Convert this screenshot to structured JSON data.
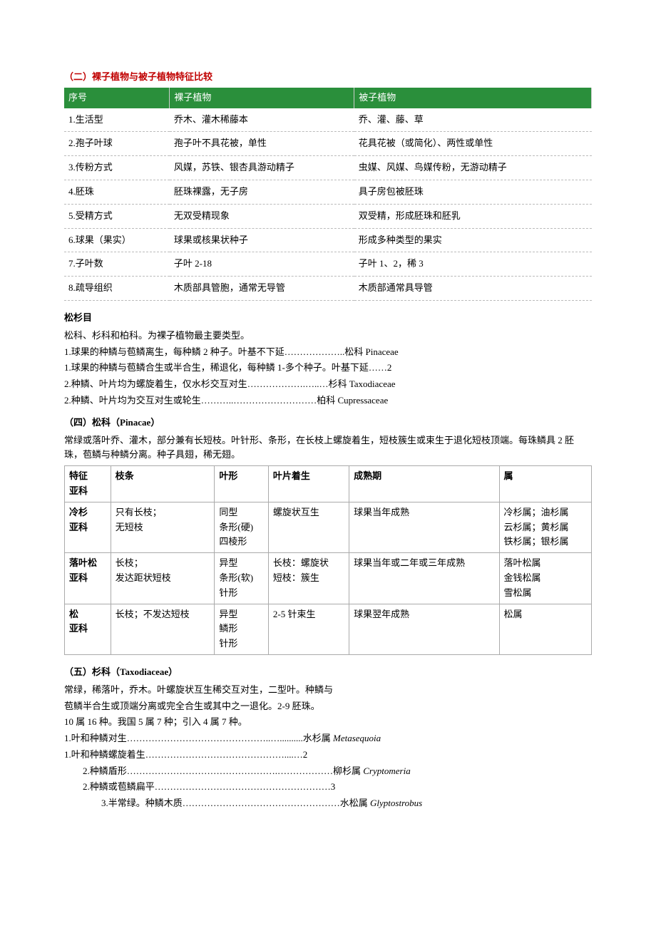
{
  "colors": {
    "title_red": "#c00000",
    "header_bg": "#2a8f3b",
    "header_fg": "#ffffff",
    "border_dashed": "#bbbbbb",
    "border_solid": "#aaaaaa",
    "text": "#000000",
    "background": "#ffffff"
  },
  "section2": {
    "title": "（二）裸子植物与被子植物特征比较",
    "table": {
      "headers": {
        "seq": "序号",
        "gym": "裸子植物",
        "ang": "被子植物"
      },
      "rows": [
        {
          "seq": "1.生活型",
          "gym": "乔木、灌木稀藤本",
          "ang": "乔、灌、藤、草"
        },
        {
          "seq": "2.孢子叶球",
          "gym": "孢子叶不具花被，单性",
          "ang": "花具花被（或简化）、两性或单性"
        },
        {
          "seq": "3.传粉方式",
          "gym": "风媒，苏铁、银杏具游动精子",
          "ang": "虫媒、风媒、鸟媒传粉，无游动精子"
        },
        {
          "seq": "4.胚珠",
          "gym": "胚珠裸露，无子房",
          "ang": "具子房包被胚珠"
        },
        {
          "seq": "5.受精方式",
          "gym": "无双受精现象",
          "ang": "双受精，形成胚珠和胚乳"
        },
        {
          "seq": "6.球果（果实）",
          "gym": "球果或核果状种子",
          "ang": "形成多种类型的果实"
        },
        {
          "seq": "7.子叶数",
          "gym": "子叶 2-18",
          "ang": "子叶 1、2，稀 3"
        },
        {
          "seq": "8.疏导组织",
          "gym": "木质部具管胞，通常无导管",
          "ang": "木质部通常具导管"
        }
      ]
    }
  },
  "order": {
    "title": "松杉目",
    "lines": [
      "松科、杉科和柏科。为裸子植物最主要类型。",
      "1.球果的种鳞与苞鳞离生，每种鳞 2 种子。叶基不下延………………..松科 Pinaceae",
      "1.球果的种鳞与苞鳞合生或半合生，稀退化，每种鳞 1-多个种子。叶基下延……2",
      " 2.种鳞、叶片均为螺旋着生，仅水杉交互对生……………….…..…杉科 Taxodiaceae",
      " 2.种鳞、叶片均为交互对生或轮生………..………………………柏科 Cupressaceae"
    ]
  },
  "section4": {
    "title": "（四）松科（Pinacae）",
    "desc": "常绿或落叶乔、灌木，部分兼有长短枝。叶针形、条形，在长枝上螺旋着生，短枝簇生或束生于退化短枝顶端。每珠鳞具 2 胚珠，苞鳞与种鳞分离。种子具翅，稀无翅。",
    "table": {
      "cols": [
        "特征\n亚科",
        "枝条",
        "叶形",
        "叶片着生",
        "成熟期",
        "属"
      ],
      "h1": "特征",
      "h1b": "亚科",
      "h2": "枝条",
      "h3": "叶形",
      "h4": "叶片着生",
      "h5": "成熟期",
      "h6": "属",
      "r1": {
        "c1a": "冷杉",
        "c1b": "亚科",
        "c2": "只有长枝；\n无短枝",
        "c3": "同型\n条形(硬)\n四棱形",
        "c4": "螺旋状互生",
        "c5": "球果当年成熟",
        "c6": "冷杉属；油杉属\n云杉属；黄杉属\n铁杉属；银杉属"
      },
      "r2": {
        "c1a": "落叶松",
        "c1b": "亚科",
        "c2": "长枝；\n发达距状短枝",
        "c3": "异型\n条形(软)\n针形",
        "c4": "长枝：螺旋状\n短枝：簇生",
        "c5": "球果当年或二年或三年成熟",
        "c6": "落叶松属\n金钱松属\n雪松属"
      },
      "r3": {
        "c1a": "松",
        "c1b": "亚科",
        "c2": "长枝；不发达短枝",
        "c3": "异型\n鳞形\n针形",
        "c4": "2-5 针束生",
        "c5": "球果翌年成熟",
        "c6": "松属"
      }
    }
  },
  "section5": {
    "title": "（五）杉科（Taxodiaceae）",
    "lines": [
      "常绿，稀落叶，乔木。叶螺旋状互生稀交互对生，二型叶。种鳞与",
      "苞鳞半合生或顶端分离或完全合生或其中之一退化。2-9 胚珠。",
      "10 属 16 种。我国 5 属 7 种；引入 4 属 7 种。"
    ],
    "key": {
      "l1": "1.叶和种鳞对生………………………………………..…..........水杉属 ",
      "l1i": "Metasequoia",
      "l2": "1.叶和种鳞螺旋着生………………………………………....…2",
      "l3": "2.种鳞盾形………………………………………….………………柳杉属 ",
      "l3i": "Cryptomeria",
      "l4": "2.种鳞或苞鳞扁平…………………………………………………3",
      "l5": "3.半常绿。种鳞木质……………………………………………水松属 ",
      "l5i": "Glyptostrobus"
    }
  }
}
